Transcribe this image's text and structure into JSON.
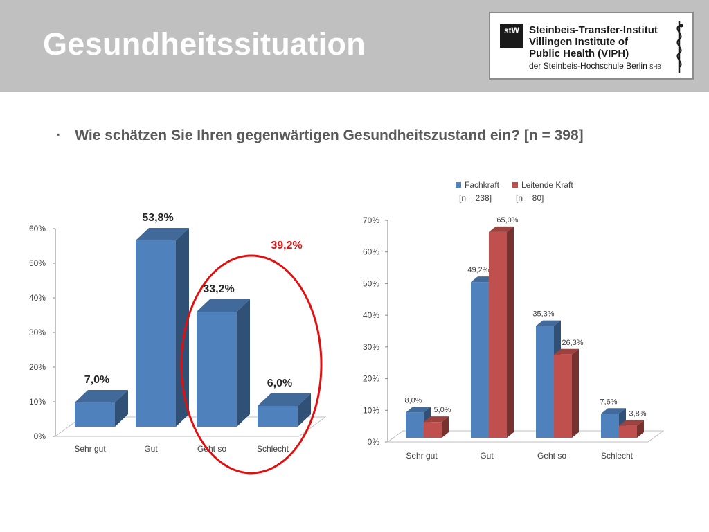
{
  "slide": {
    "title": "Gesundheitssituation",
    "bullet_symbol": "▪",
    "question": "Wie schätzen Sie Ihren gegenwärtigen Gesundheitszustand ein? [n = 398]"
  },
  "logo": {
    "mark": "stW",
    "line1": "Steinbeis-Transfer-Institut",
    "line2": "Villingen Institute of",
    "line3": "Public Health (VIPH)",
    "line4": "der Steinbeis-Hochschule Berlin",
    "line4_suffix": "SHB"
  },
  "colors": {
    "header_bg": "#c0c0c0",
    "fachkraft": "#4f81bd",
    "leitende_kraft": "#c0504d",
    "highlight": "#e01010"
  },
  "chart_data": [
    {
      "type": "bar",
      "categories": [
        "Sehr gut",
        "Gut",
        "Geht so",
        "Schlecht"
      ],
      "values": [
        7.0,
        53.8,
        33.2,
        6.0
      ],
      "data_labels": [
        "7,0%",
        "53,8%",
        "33,2%",
        "6,0%"
      ],
      "ylim": [
        0,
        60
      ],
      "yticks": [
        "0%",
        "10%",
        "20%",
        "30%",
        "40%",
        "50%",
        "60%"
      ],
      "annotation": "39,2%",
      "grid": false,
      "legend": "none"
    },
    {
      "type": "bar",
      "categories": [
        "Sehr gut",
        "Gut",
        "Geht so",
        "Schlecht"
      ],
      "series": [
        {
          "name": "Fachkraft",
          "note": "[n = 238]",
          "values": [
            8.0,
            49.2,
            35.3,
            7.6
          ],
          "labels": [
            "8,0%",
            "49,2%",
            "35,3%",
            "7,6%"
          ]
        },
        {
          "name": "Leitende Kraft",
          "note": "[n = 80]",
          "values": [
            5.0,
            65.0,
            26.3,
            3.8
          ],
          "labels": [
            "5,0%",
            "65,0%",
            "26,3%",
            "3,8%"
          ]
        }
      ],
      "ylim": [
        0,
        70
      ],
      "yticks": [
        "0%",
        "10%",
        "20%",
        "30%",
        "40%",
        "50%",
        "60%",
        "70%"
      ],
      "grid": false,
      "legend": "top"
    }
  ]
}
